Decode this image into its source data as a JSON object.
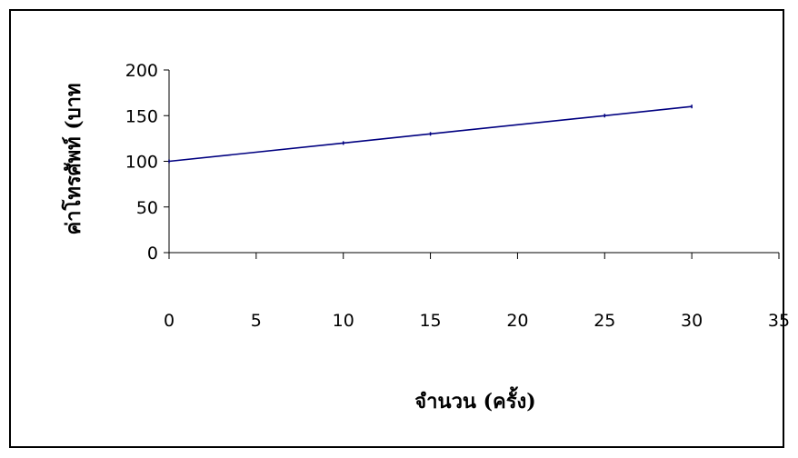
{
  "chart_data": {
    "type": "line",
    "title": "",
    "xlabel": "จำนวน (ครั้ง)",
    "ylabel": "ค่าโทรศัพท์ (บาท",
    "xlim": [
      0,
      35
    ],
    "ylim": [
      0,
      200
    ],
    "x_ticks": [
      "0",
      "5",
      "10",
      "15",
      "20",
      "25",
      "30",
      "35"
    ],
    "y_ticks": [
      "0",
      "50",
      "100",
      "150",
      "200"
    ],
    "grid": false,
    "legend": "none",
    "series": [
      {
        "color": "#000080",
        "x": [
          0,
          10,
          15,
          25,
          30
        ],
        "y": [
          100,
          120,
          130,
          150,
          160
        ]
      }
    ]
  }
}
